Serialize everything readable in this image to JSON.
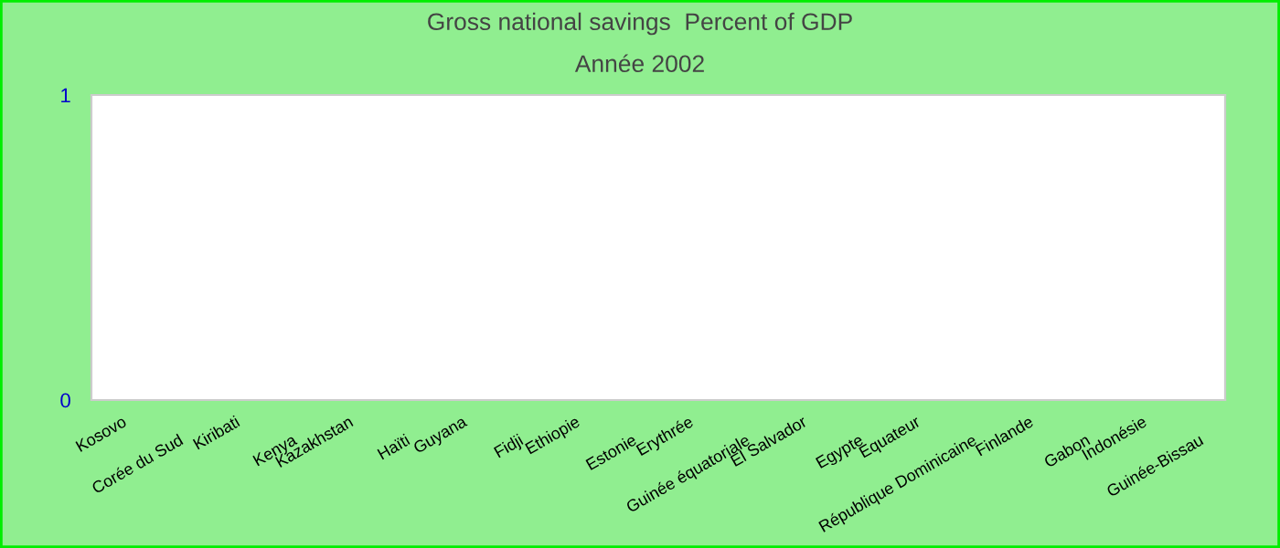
{
  "chart_data": {
    "type": "bar",
    "title": "Gross national savings  Percent of GDP",
    "subtitle": "Année 2002",
    "categories": [
      "Kosovo",
      "Corée du Sud",
      "Kiribati",
      "Kenya",
      "Kazakhstan",
      "Haïti",
      "Guyana",
      "Fidji",
      "Ethiopie",
      "Estonie",
      "Erythrée",
      "Guinée équatoriale",
      "El Salvador",
      "Egypte",
      "Equateur",
      "République Dominicaine",
      "Finlande",
      "Gabon",
      "Indonésie",
      "Guinée-Bissau"
    ],
    "values": [
      null,
      null,
      null,
      null,
      null,
      null,
      null,
      null,
      null,
      null,
      null,
      null,
      null,
      null,
      null,
      null,
      null,
      null,
      null,
      null
    ],
    "ylim": [
      0,
      1
    ],
    "yticks": [
      0,
      1
    ]
  }
}
